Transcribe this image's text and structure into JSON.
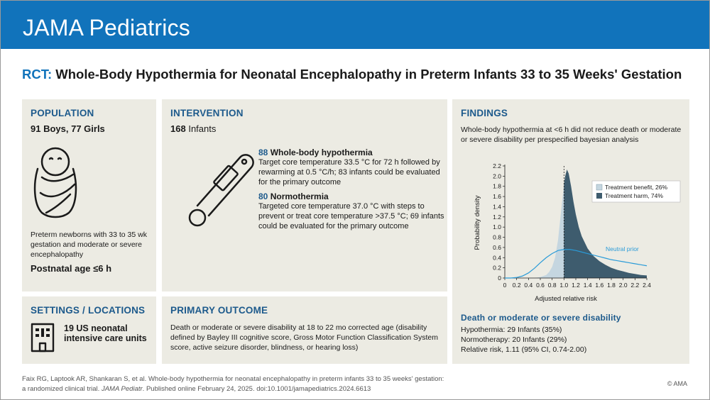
{
  "header": {
    "journal": "JAMA Pediatrics"
  },
  "title": {
    "prefix": "RCT:",
    "text": "Whole-Body Hypothermia for Neonatal Encephalopathy in Preterm Infants 33 to 35 Weeks' Gestation"
  },
  "population": {
    "heading": "POPULATION",
    "counts": "91 Boys, 77 Girls",
    "description": "Preterm newborns with 33 to 35 wk gestation and moderate or severe encephalopathy",
    "age": "Postnatal age ≤6 h",
    "icon": "swaddled-infant-icon"
  },
  "intervention": {
    "heading": "INTERVENTION",
    "total_num": "168",
    "total_label": "Infants",
    "icon": "thermometer-icon",
    "arms": [
      {
        "num": "88",
        "name": "Whole-body hypothermia",
        "desc": "Target core temperature 33.5 °C for 72 h followed by rewarming at 0.5 °C/h; 83 infants could be evaluated for the primary  outcome"
      },
      {
        "num": "80",
        "name": "Normothermia",
        "desc": "Targeted core temperature 37.0 °C with steps to prevent or treat core temperature >37.5 °C; 69 infants could be evaluated for the primary outcome"
      }
    ]
  },
  "settings": {
    "heading": "SETTINGS / LOCATIONS",
    "text": "19 US neonatal intensive care units",
    "icon": "hospital-building-icon"
  },
  "primary_outcome": {
    "heading": "PRIMARY OUTCOME",
    "text": "Death or moderate or severe disability at 18 to 22 mo corrected age (disability defined by Bayley III cognitive score, Gross Motor Function Classification System score, active seizure disorder, blindness, or hearing loss)"
  },
  "findings": {
    "heading": "FINDINGS",
    "summary": "Whole-body hypothermia at <6 h did not reduce death or moderate or severe disability per prespecified bayesian analysis",
    "outcome_heading": "Death or moderate or severe disability",
    "results": [
      "Hypothermia: 29 Infants (35%)",
      "Normotherapy: 20 Infants (29%)",
      "Relative risk, 1.11 (95% CI, 0.74-2.00)"
    ]
  },
  "chart_data": {
    "type": "area",
    "xlabel": "Adjusted relative risk",
    "ylabel": "Probability density",
    "xlim": [
      0,
      2.4
    ],
    "ylim": [
      0,
      2.2
    ],
    "xticks": [
      "0",
      "0.2",
      "0.4",
      "0.6",
      "0.8",
      "1.0",
      "1.2",
      "1.4",
      "1.6",
      "1.8",
      "2.0",
      "2.2",
      "2.4"
    ],
    "yticks": [
      "0",
      "0.2",
      "0.4",
      "0.6",
      "0.8",
      "1.0",
      "1.2",
      "1.4",
      "1.6",
      "1.8",
      "2.0",
      "2.2"
    ],
    "reference_x": 1.0,
    "legend_position": "top-right",
    "posterior": {
      "x": [
        0.5,
        0.6,
        0.7,
        0.75,
        0.8,
        0.85,
        0.9,
        0.95,
        1.0,
        1.02,
        1.05,
        1.08,
        1.12,
        1.16,
        1.2,
        1.25,
        1.3,
        1.4,
        1.5,
        1.6,
        1.7,
        1.8,
        1.9,
        2.0,
        2.1,
        2.2,
        2.3,
        2.4
      ],
      "y": [
        0.0,
        0.02,
        0.06,
        0.12,
        0.22,
        0.4,
        0.75,
        1.3,
        1.85,
        2.0,
        2.13,
        2.05,
        1.8,
        1.5,
        1.25,
        1.0,
        0.82,
        0.58,
        0.43,
        0.33,
        0.26,
        0.2,
        0.16,
        0.13,
        0.1,
        0.08,
        0.06,
        0.05
      ]
    },
    "prior": {
      "name": "Neutral prior",
      "x": [
        0.0,
        0.1,
        0.2,
        0.3,
        0.4,
        0.5,
        0.6,
        0.7,
        0.8,
        0.9,
        1.0,
        1.1,
        1.2,
        1.3,
        1.4,
        1.5,
        1.6,
        1.7,
        1.8,
        1.9,
        2.0,
        2.1,
        2.2,
        2.3,
        2.4
      ],
      "y": [
        0.0,
        0.0,
        0.01,
        0.04,
        0.1,
        0.19,
        0.3,
        0.4,
        0.48,
        0.54,
        0.56,
        0.56,
        0.54,
        0.51,
        0.48,
        0.45,
        0.42,
        0.39,
        0.36,
        0.34,
        0.32,
        0.3,
        0.28,
        0.26,
        0.24
      ]
    },
    "series": [
      {
        "name": "Treatment benefit, 26%",
        "color": "#c5d6e0"
      },
      {
        "name": "Treatment harm, 74%",
        "color": "#3e5c6e"
      }
    ],
    "prior_color": "#2a9bd8"
  },
  "footer": {
    "citation_line1": "Faix RG, Laptook AR, Shankaran S, et al. Whole-body hypothermia for neonatal encephalopathy in preterm infants 33 to 35 weeks' gestation:",
    "citation_line2_pre": "a randomized clinical trial.",
    "citation_journal": "JAMA Pediatr",
    "citation_line2_post": ". Published online February 24, 2025. doi:10.1001/jamapediatrics.2024.6613",
    "copyright": "© AMA"
  }
}
